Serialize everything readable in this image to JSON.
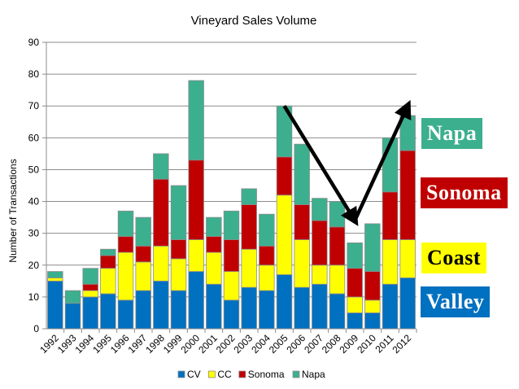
{
  "chart_data": {
    "type": "bar",
    "stacked": true,
    "title": "Vineyard Sales Volume",
    "xlabel": "",
    "ylabel": "Number of Transactions",
    "ylim": [
      0,
      90
    ],
    "yticks": [
      0,
      10,
      20,
      30,
      40,
      50,
      60,
      70,
      80,
      90
    ],
    "grid": true,
    "legend_position": "bottom",
    "categories": [
      "1992",
      "1993",
      "1994",
      "1995",
      "1996",
      "1997",
      "1998",
      "1999",
      "2000",
      "2001",
      "2002",
      "2003",
      "2004",
      "2005",
      "2006",
      "2007",
      "2008",
      "2009",
      "2010",
      "2011",
      "2012"
    ],
    "series": [
      {
        "name": "CV",
        "color": "#0070c0",
        "values": [
          15,
          8,
          10,
          11,
          9,
          12,
          15,
          12,
          18,
          14,
          9,
          13,
          12,
          17,
          13,
          14,
          11,
          5,
          5,
          14,
          16
        ]
      },
      {
        "name": "CC",
        "color": "#ffff00",
        "values": [
          1,
          0,
          2,
          8,
          15,
          9,
          11,
          10,
          10,
          10,
          9,
          12,
          8,
          25,
          15,
          6,
          9,
          5,
          4,
          14,
          12
        ]
      },
      {
        "name": "Sonoma",
        "color": "#c00000",
        "values": [
          0,
          0,
          2,
          4,
          5,
          5,
          21,
          6,
          25,
          5,
          10,
          14,
          6,
          12,
          11,
          14,
          12,
          9,
          9,
          15,
          28
        ]
      },
      {
        "name": "Napa",
        "color": "#3caf8e",
        "values": [
          2,
          4,
          5,
          2,
          8,
          9,
          8,
          17,
          25,
          6,
          9,
          5,
          10,
          16,
          19,
          7,
          8,
          8,
          15,
          17,
          11
        ]
      }
    ],
    "annotations": [
      {
        "type": "arrow",
        "from": {
          "x": "2005",
          "y": 70
        },
        "to": {
          "x": "2009",
          "y": 34
        }
      },
      {
        "type": "arrow",
        "from": {
          "x": "2009",
          "y": 34
        },
        "to": {
          "x": "2012",
          "y": 70
        }
      }
    ]
  },
  "labels": {
    "napa": "Napa",
    "sonoma": "Sonoma",
    "coast": "Coast",
    "valley": "Valley"
  },
  "label_colors": {
    "napa": "#3caf8e",
    "sonoma": "#c00000",
    "coast": "#ffff00",
    "valley": "#0070c0"
  }
}
